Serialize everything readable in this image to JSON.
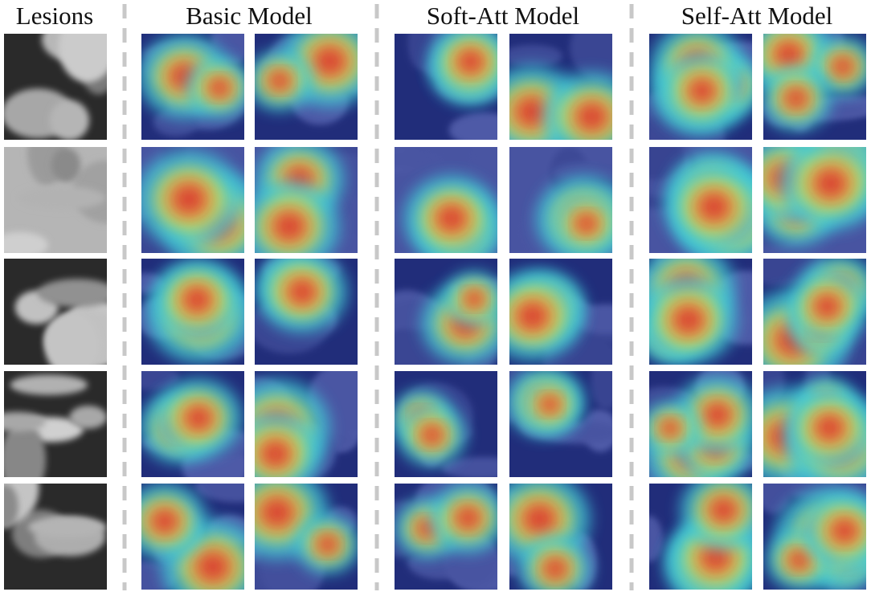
{
  "headers": [
    "Lesions",
    "Basic Model",
    "Soft-Att Model",
    "Self-Att Model"
  ]
}
